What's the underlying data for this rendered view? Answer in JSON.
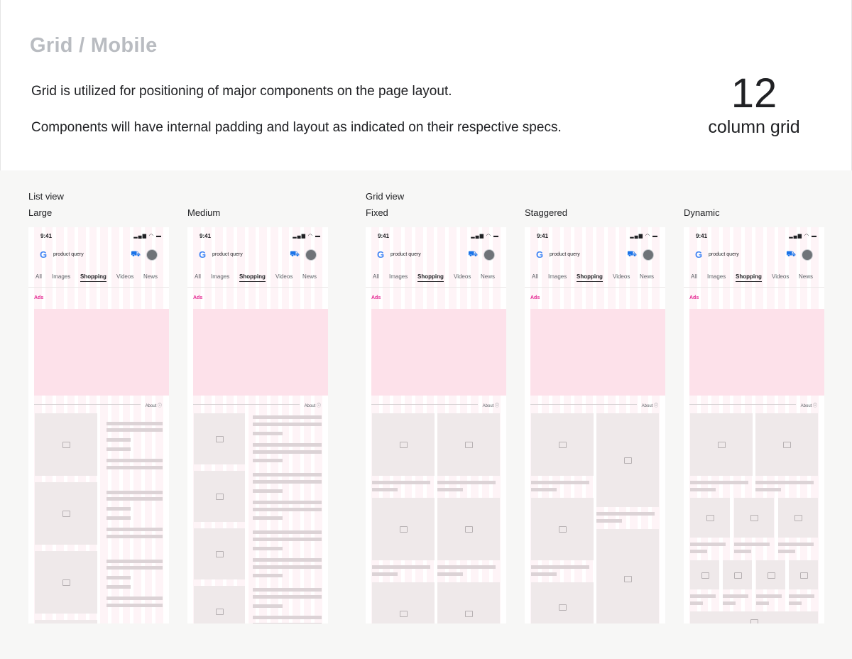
{
  "header": {
    "title": "Grid / Mobile",
    "line1": "Grid is utilized for positioning of major components on the page layout.",
    "line2": "Components will have internal padding and layout as indicated on their respective specs.",
    "grid_number": "12",
    "grid_label": "column grid"
  },
  "groups": {
    "list": "List view",
    "grid": "Grid view"
  },
  "views": [
    "Large",
    "Medium",
    "Fixed",
    "Staggered",
    "Dynamic"
  ],
  "phone": {
    "time": "9:41",
    "status_icons": "▂▄▆ ◠ ▬",
    "search_query": "product query",
    "tabs": [
      "All",
      "Images",
      "Shopping",
      "Videos",
      "News"
    ],
    "active_tab": "Shopping",
    "ads_label": "Ads",
    "about_label": "About ⓘ",
    "icons": {
      "logo": "google-logo-icon",
      "cart": "cart-icon",
      "avatar": "avatar-icon",
      "image": "image-placeholder-icon"
    }
  },
  "colors": {
    "ads": "#e52592",
    "ad_block": "#fde1ea",
    "grid_columns": "#fccddc",
    "placeholder": "#efe9ea",
    "title": "#b9bcc1"
  }
}
